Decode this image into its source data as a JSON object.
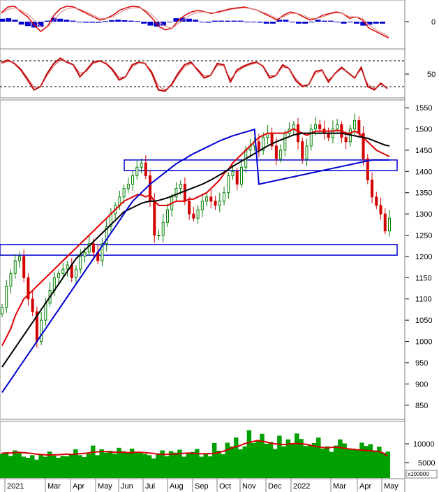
{
  "chart_data": [
    {
      "panel": "macd",
      "type": "line",
      "y_ticks": [
        "0"
      ],
      "series": [
        {
          "style": "line",
          "color": "#d40000",
          "values": [
            0.55,
            0.9,
            0.95,
            0.6,
            0.3,
            -0.2,
            -0.6,
            -0.3,
            0.4,
            0.8,
            0.95,
            0.9,
            0.7,
            0.5,
            0.3,
            0.1,
            0.2,
            0.4,
            0.7,
            0.85,
            0.95,
            0.9,
            0.6,
            0.2,
            -0.3,
            -0.5,
            -0.4,
            0.1,
            0.4,
            0.6,
            0.7,
            0.6,
            0.5,
            0.6,
            0.7,
            0.8,
            0.85,
            0.9,
            0.8,
            0.7,
            0.5,
            0.3,
            0.1,
            0.4,
            0.6,
            0.5,
            0.3,
            0.1,
            0.2,
            0.4,
            0.5,
            0.6,
            0.5,
            0.2,
            0.3,
            0.1,
            -0.4,
            -0.6,
            -0.8,
            -1.0
          ]
        },
        {
          "style": "signal",
          "color": "#e88080",
          "values": [
            0.5,
            0.75,
            0.85,
            0.7,
            0.45,
            0.1,
            -0.3,
            -0.35,
            0.1,
            0.55,
            0.8,
            0.85,
            0.75,
            0.6,
            0.4,
            0.2,
            0.2,
            0.3,
            0.55,
            0.75,
            0.85,
            0.85,
            0.7,
            0.4,
            0.0,
            -0.3,
            -0.4,
            -0.1,
            0.2,
            0.45,
            0.6,
            0.6,
            0.55,
            0.55,
            0.65,
            0.75,
            0.8,
            0.85,
            0.8,
            0.7,
            0.55,
            0.4,
            0.2,
            0.3,
            0.5,
            0.5,
            0.4,
            0.2,
            0.2,
            0.3,
            0.45,
            0.55,
            0.5,
            0.3,
            0.3,
            0.2,
            -0.2,
            -0.5,
            -0.7,
            -0.9
          ]
        }
      ],
      "histogram": [
        0.3,
        0.35,
        0.2,
        -0.3,
        -0.45,
        -0.6,
        -0.5,
        0.1,
        0.4,
        0.3,
        0.2,
        0.1,
        0.0,
        -0.1,
        -0.1,
        -0.1,
        0.05,
        0.15,
        0.2,
        0.15,
        0.1,
        0.05,
        -0.2,
        -0.4,
        -0.5,
        -0.4,
        0.0,
        0.35,
        0.4,
        0.3,
        0.2,
        0.0,
        -0.1,
        0.1,
        0.1,
        0.1,
        0.1,
        0.1,
        0.0,
        0.0,
        -0.1,
        -0.2,
        -0.2,
        0.2,
        0.2,
        0.0,
        -0.2,
        -0.2,
        0.0,
        0.2,
        0.1,
        0.1,
        0.0,
        -0.2,
        0.0,
        -0.2,
        -0.4,
        -0.3,
        -0.2,
        -0.2
      ],
      "ylim": [
        -1.2,
        1.2
      ]
    },
    {
      "panel": "rsi",
      "type": "line",
      "y_ticks": [
        50
      ],
      "ref_lines": [
        70,
        30
      ],
      "series": [
        {
          "style": "line",
          "color": "#c00000",
          "values": [
            72,
            75,
            70,
            60,
            45,
            30,
            35,
            55,
            70,
            78,
            72,
            68,
            50,
            60,
            72,
            74,
            70,
            60,
            45,
            50,
            68,
            72,
            70,
            55,
            30,
            28,
            38,
            55,
            68,
            72,
            60,
            48,
            52,
            70,
            68,
            42,
            60,
            66,
            70,
            72,
            66,
            48,
            52,
            68,
            62,
            44,
            35,
            38,
            58,
            60,
            42,
            55,
            64,
            56,
            48,
            64,
            35,
            30,
            40,
            32
          ]
        },
        {
          "style": "signal",
          "color": "#d45050",
          "values": [
            70,
            73,
            71,
            62,
            48,
            34,
            34,
            52,
            66,
            75,
            73,
            69,
            55,
            58,
            70,
            73,
            71,
            62,
            49,
            50,
            65,
            71,
            70,
            58,
            36,
            30,
            36,
            52,
            65,
            70,
            62,
            51,
            52,
            67,
            67,
            46,
            57,
            64,
            68,
            71,
            67,
            51,
            52,
            65,
            62,
            47,
            37,
            38,
            55,
            59,
            45,
            54,
            62,
            57,
            49,
            61,
            39,
            32,
            38,
            33
          ]
        }
      ],
      "ylim": [
        20,
        90
      ]
    },
    {
      "panel": "price",
      "type": "candlestick",
      "title": "",
      "y_ticks": [
        1550,
        1500,
        1450,
        1400,
        1350,
        1300,
        1250,
        1200,
        1150,
        1100,
        1050,
        1000,
        950,
        900,
        850
      ],
      "ylim": [
        820,
        1565
      ],
      "x_ticks": [
        "2021",
        "Mar",
        "Apr",
        "May",
        "Jun",
        "Jul",
        "Aug",
        "Sep",
        "Oct",
        "Nov",
        "Dec",
        "2022",
        "Mar",
        "Apr",
        "May"
      ],
      "close": [
        1080,
        1130,
        1160,
        1190,
        1200,
        1150,
        1100,
        1070,
        1000,
        1050,
        1090,
        1120,
        1150,
        1160,
        1170,
        1180,
        1150,
        1170,
        1200,
        1210,
        1230,
        1210,
        1190,
        1230,
        1270,
        1300,
        1320,
        1340,
        1360,
        1370,
        1390,
        1410,
        1420,
        1390,
        1330,
        1250,
        1250,
        1280,
        1310,
        1340,
        1360,
        1370,
        1330,
        1300,
        1290,
        1310,
        1330,
        1340,
        1330,
        1320,
        1330,
        1350,
        1390,
        1400,
        1370,
        1410,
        1450,
        1460,
        1470,
        1450,
        1480,
        1490,
        1460,
        1430,
        1450,
        1490,
        1500,
        1510,
        1470,
        1430,
        1460,
        1500,
        1510,
        1500,
        1490,
        1480,
        1500,
        1510,
        1480,
        1470,
        1500,
        1520,
        1490,
        1430,
        1380,
        1340,
        1320,
        1300,
        1260,
        1290
      ],
      "series": [
        {
          "name": "",
          "color": "#e00000",
          "values": [
            990,
            1010,
            1030,
            1060,
            1080,
            1100,
            1110,
            1120,
            1130,
            1140,
            1150,
            1160,
            1170,
            1180,
            1190,
            1200,
            1210,
            1220,
            1230,
            1240,
            1250,
            1260,
            1270,
            1280,
            1290,
            1300,
            1310,
            1320,
            1330,
            1335,
            1340,
            1345,
            1345,
            1340,
            1345,
            1330,
            1320,
            1320,
            1320,
            1325,
            1330,
            1330,
            1330,
            1335,
            1335,
            1340,
            1345,
            1350,
            1360,
            1370,
            1380,
            1395,
            1405,
            1420,
            1430,
            1440,
            1450,
            1460,
            1470,
            1480,
            1485,
            1490,
            1490,
            1490,
            1490,
            1490,
            1495,
            1500,
            1495,
            1490,
            1485,
            1490,
            1495,
            1495,
            1495,
            1495,
            1495,
            1497,
            1495,
            1490,
            1490,
            1495,
            1490,
            1480,
            1470,
            1460,
            1450,
            1445,
            1440,
            1435
          ]
        },
        {
          "name": "",
          "color": "#000000",
          "values": [
            940,
            955,
            970,
            985,
            1000,
            1015,
            1030,
            1045,
            1060,
            1075,
            1090,
            1105,
            1120,
            1135,
            1150,
            1165,
            1180,
            1195,
            1205,
            1215,
            1225,
            1235,
            1245,
            1255,
            1265,
            1275,
            1285,
            1295,
            1305,
            1310,
            1315,
            1320,
            1325,
            1328,
            1330,
            1330,
            1332,
            1335,
            1338,
            1342,
            1346,
            1350,
            1354,
            1358,
            1362,
            1366,
            1370,
            1375,
            1380,
            1386,
            1392,
            1398,
            1405,
            1412,
            1418,
            1424,
            1430,
            1436,
            1442,
            1448,
            1454,
            1460,
            1465,
            1470,
            1474,
            1478,
            1482,
            1486,
            1488,
            1490,
            1490,
            1490,
            1490,
            1490,
            1490,
            1490,
            1490,
            1490,
            1490,
            1488,
            1486,
            1484,
            1482,
            1480,
            1478,
            1474,
            1470,
            1466,
            1462,
            1460
          ]
        },
        {
          "name": "",
          "color": "#0000d0",
          "values": [
            880,
            895,
            910,
            925,
            940,
            955,
            970,
            985,
            1000,
            1015,
            1030,
            1045,
            1060,
            1075,
            1090,
            1105,
            1120,
            1135,
            1150,
            1165,
            1180,
            1195,
            1210,
            1225,
            1240,
            1255,
            1270,
            1285,
            1300,
            1315,
            1330,
            1340,
            1350,
            1360,
            1370,
            1378,
            1386,
            1394,
            1402,
            1410,
            1418,
            1424,
            1430,
            1436,
            1442,
            1447,
            1452,
            1457,
            1462,
            1467,
            1472,
            1476,
            1480,
            1484,
            1487,
            1490,
            1493,
            1496,
            1499,
            1402,
            1405,
            1408,
            1411,
            1414,
            1416,
            1418,
            1420,
            1421,
            1422,
            1423,
            1424,
            1425,
            1426,
            1427,
            1428,
            1429,
            1430,
            1431,
            1432,
            1433,
            1434,
            1434,
            1434,
            1434,
            1434,
            1434,
            1434,
            1434,
            1434,
            1434
          ]
        }
      ],
      "zones": [
        {
          "y0": 1402,
          "y1": 1427
        },
        {
          "y0": 1203,
          "y1": 1228
        }
      ]
    },
    {
      "panel": "volume",
      "type": "bar",
      "y_ticks": [
        "10000",
        "5000"
      ],
      "unit_label": "x100000",
      "ylim": [
        0,
        15000
      ],
      "values": [
        6500,
        7000,
        6000,
        7500,
        6800,
        5800,
        5500,
        6200,
        5000,
        6500,
        5800,
        7200,
        6100,
        5500,
        6000,
        5900,
        6500,
        7800,
        6200,
        5700,
        6600,
        8800,
        6200,
        7800,
        6900,
        7400,
        6600,
        8200,
        7300,
        6800,
        8000,
        7100,
        6800,
        6500,
        6200,
        5300,
        6700,
        7500,
        5900,
        7300,
        6900,
        7700,
        5800,
        6600,
        7100,
        7900,
        5800,
        6500,
        5900,
        9500,
        7400,
        6500,
        9600,
        8600,
        11000,
        7800,
        8600,
        13000,
        9500,
        10200,
        12000,
        9300,
        9800,
        7900,
        11500,
        8600,
        10500,
        9300,
        12100,
        10600,
        8700,
        8900,
        9500,
        11000,
        8000,
        8600,
        7100,
        8800,
        10500,
        9400,
        7900,
        8000,
        7600,
        9600,
        8700,
        9200,
        7500,
        8500,
        6800,
        7200
      ],
      "series": [
        {
          "name": "",
          "color": "#d40000",
          "values": [
            6700,
            6800,
            6800,
            6900,
            7000,
            6900,
            6800,
            6700,
            6500,
            6400,
            6300,
            6200,
            6300,
            6300,
            6400,
            6500,
            6400,
            6500,
            6600,
            6700,
            6800,
            7000,
            7100,
            7200,
            7200,
            7100,
            7000,
            7000,
            7000,
            6900,
            6900,
            7000,
            7000,
            6900,
            6800,
            6700,
            6500,
            6400,
            6400,
            6500,
            6500,
            6600,
            6700,
            6800,
            6700,
            6700,
            6600,
            6600,
            6600,
            6700,
            6900,
            7200,
            7600,
            8100,
            8500,
            8800,
            9300,
            9600,
            9900,
            10200,
            10000,
            9800,
            9500,
            9300,
            9200,
            9100,
            9200,
            9300,
            9400,
            9300,
            9200,
            9000,
            8700,
            8500,
            8300,
            8200,
            8300,
            8400,
            8300,
            8100,
            7900,
            7800,
            7700,
            7600,
            7500,
            7400,
            7300,
            7200,
            6800,
            6000
          ]
        }
      ]
    }
  ],
  "colors": {
    "panel_border": "#808080",
    "candle_up": "#008000",
    "candle_down": "#d40000",
    "zone_stroke": "#0000d0",
    "volume_bar": "#00a000"
  }
}
